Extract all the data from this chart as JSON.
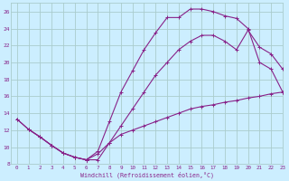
{
  "xlabel": "Windchill (Refroidissement éolien,°C)",
  "bg_color": "#cceeff",
  "grid_color": "#aacccc",
  "line_color": "#882288",
  "xlim": [
    -0.5,
    23
  ],
  "ylim": [
    8,
    27
  ],
  "xticks": [
    0,
    1,
    2,
    3,
    4,
    5,
    6,
    7,
    8,
    9,
    10,
    11,
    12,
    13,
    14,
    15,
    16,
    17,
    18,
    19,
    20,
    21,
    22,
    23
  ],
  "yticks": [
    8,
    10,
    12,
    14,
    16,
    18,
    20,
    22,
    24,
    26
  ],
  "line1_x": [
    0,
    1,
    2,
    3,
    4,
    5,
    6,
    7,
    8,
    9,
    10,
    11,
    12,
    13,
    14,
    15,
    16,
    17,
    18,
    19,
    20,
    21,
    22,
    23
  ],
  "line1_y": [
    13.3,
    12.1,
    11.2,
    10.2,
    9.3,
    8.8,
    8.5,
    9.2,
    10.5,
    11.5,
    12.0,
    12.5,
    13.0,
    13.5,
    14.0,
    14.5,
    14.8,
    15.0,
    15.3,
    15.5,
    15.8,
    16.0,
    16.3,
    16.5
  ],
  "line2_x": [
    0,
    1,
    2,
    3,
    4,
    5,
    6,
    7,
    8,
    9,
    10,
    11,
    12,
    13,
    14,
    15,
    16,
    17,
    18,
    19,
    20,
    21,
    22,
    23
  ],
  "line2_y": [
    13.3,
    12.1,
    11.2,
    10.2,
    9.3,
    8.8,
    8.5,
    9.5,
    13.0,
    16.5,
    19.0,
    21.5,
    23.5,
    25.3,
    25.3,
    26.3,
    26.3,
    26.0,
    25.5,
    25.2,
    24.0,
    20.0,
    19.2,
    16.5
  ],
  "line3_x": [
    1,
    2,
    3,
    4,
    5,
    6,
    7,
    8,
    9,
    10,
    11,
    12,
    13,
    14,
    15,
    16,
    17,
    18,
    19,
    20,
    21,
    22,
    23
  ],
  "line3_y": [
    12.1,
    11.2,
    10.2,
    9.3,
    8.8,
    8.5,
    8.5,
    10.5,
    12.5,
    14.5,
    16.5,
    18.5,
    20.0,
    21.5,
    22.5,
    23.2,
    23.2,
    22.5,
    21.5,
    23.8,
    21.8,
    21.0,
    19.2
  ]
}
